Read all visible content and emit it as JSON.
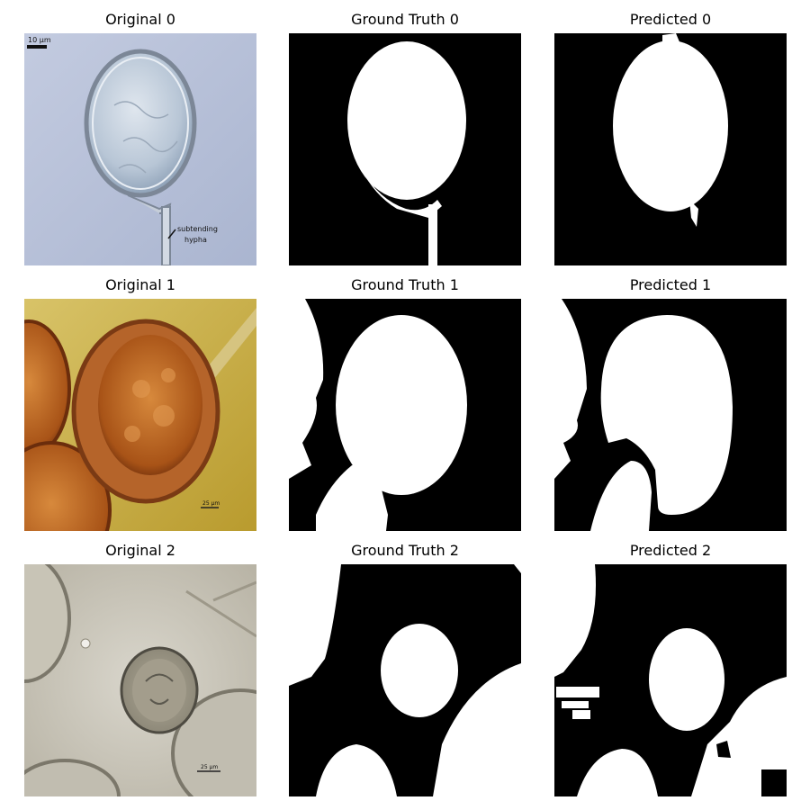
{
  "panels": [
    {
      "row": 0,
      "original_title": "Original 0",
      "ground_truth_title": "Ground Truth 0",
      "predicted_title": "Predicted 0",
      "image_annotations": [
        "10 µm",
        "subtending",
        "hypha"
      ]
    },
    {
      "row": 1,
      "original_title": "Original 1",
      "ground_truth_title": "Ground Truth 1",
      "predicted_title": "Predicted 1",
      "image_annotations": [
        "25 µm"
      ]
    },
    {
      "row": 2,
      "original_title": "Original 2",
      "ground_truth_title": "Ground Truth 2",
      "predicted_title": "Predicted 2",
      "image_annotations": [
        "25 µm"
      ]
    }
  ],
  "colors": {
    "mask_background": "#000000",
    "mask_foreground": "#ffffff",
    "row0_background": "#b4bed6",
    "row1_background": "#c9b044",
    "row2_background": "#c9c6bc"
  }
}
